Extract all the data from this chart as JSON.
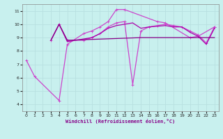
{
  "bg_color": "#c8f0ee",
  "grid_color": "#aadddd",
  "line_color_dark": "#880088",
  "line_color_mid": "#aa00aa",
  "line_color_bright": "#cc44cc",
  "xlabel": "Windchill (Refroidissement éolien,°C)",
  "ylim": [
    3.5,
    11.5
  ],
  "xlim": [
    -0.5,
    23.5
  ],
  "yticks": [
    4,
    5,
    6,
    7,
    8,
    9,
    10,
    11
  ],
  "xticks": [
    0,
    1,
    2,
    3,
    4,
    5,
    6,
    7,
    8,
    9,
    10,
    11,
    12,
    13,
    14,
    15,
    16,
    17,
    18,
    19,
    20,
    21,
    22,
    23
  ],
  "series": [
    {
      "x": [
        0,
        1,
        4,
        5,
        7,
        8,
        9,
        10,
        11,
        12,
        16,
        17,
        20,
        21,
        23
      ],
      "y": [
        7.3,
        6.1,
        4.3,
        8.5,
        9.3,
        9.5,
        9.8,
        10.2,
        11.1,
        11.1,
        10.2,
        10.1,
        9.0,
        9.1,
        9.8
      ],
      "color": "#cc44cc",
      "lw": 0.9,
      "marker": "+"
    },
    {
      "x": [
        3,
        4,
        5,
        7,
        8,
        9,
        10,
        11,
        12,
        13,
        14,
        15,
        16,
        17,
        18,
        19,
        20,
        21,
        22,
        23
      ],
      "y": [
        8.8,
        10.0,
        8.8,
        8.8,
        9.0,
        9.3,
        9.8,
        10.1,
        10.2,
        5.5,
        9.5,
        9.8,
        9.9,
        10.0,
        9.9,
        9.8,
        9.5,
        9.2,
        8.6,
        9.8
      ],
      "color": "#cc44cc",
      "lw": 0.9,
      "marker": "+"
    },
    {
      "x": [
        3,
        4,
        5,
        7,
        8,
        9,
        10,
        11,
        12,
        13,
        14,
        15,
        16,
        17,
        18,
        19,
        20,
        21,
        22,
        23
      ],
      "y": [
        8.8,
        10.0,
        8.7,
        8.9,
        9.0,
        9.3,
        9.7,
        9.9,
        10.0,
        10.1,
        9.7,
        9.8,
        9.85,
        9.9,
        9.8,
        9.8,
        9.4,
        9.1,
        8.5,
        9.7
      ],
      "color": "#aa00aa",
      "lw": 0.9,
      "marker": null
    },
    {
      "x": [
        3,
        4,
        5,
        14,
        15,
        16,
        17,
        18,
        19,
        20,
        21,
        22,
        23
      ],
      "y": [
        8.8,
        10.0,
        8.8,
        9.0,
        9.0,
        9.0,
        9.0,
        9.0,
        9.0,
        9.0,
        9.0,
        9.0,
        9.0
      ],
      "color": "#880088",
      "lw": 0.9,
      "marker": null
    }
  ]
}
